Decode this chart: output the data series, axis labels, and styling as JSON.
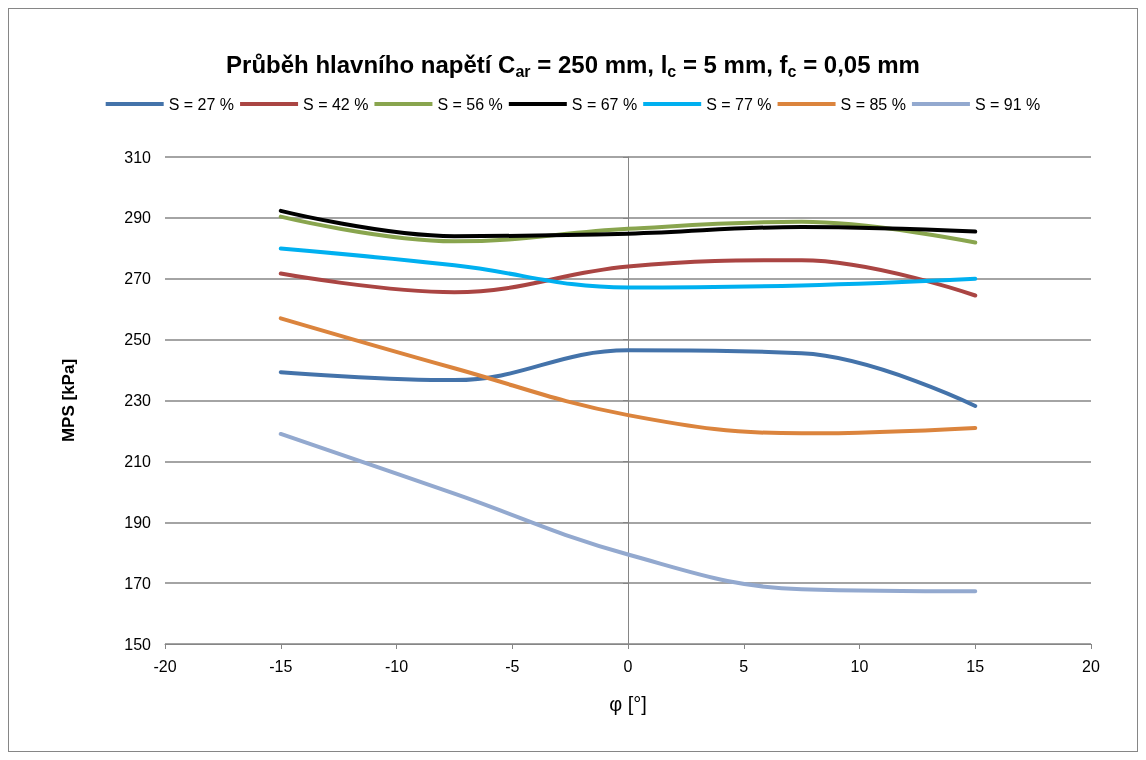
{
  "chart_data": {
    "type": "line",
    "title": "Průběh hlavního napětí C$_{ar}$ = 250 mm, l$_{c}$ = 5 mm, f$_{c}$ = 0,05 mm",
    "xlabel": "φ [°]",
    "ylabel": "MPS [kPa]",
    "x": [
      -15,
      -7.5,
      0,
      7.5,
      15
    ],
    "series": [
      {
        "name": "S = 27 %",
        "color": "#4473aa",
        "values": [
          239.3,
          236.7,
          246.5,
          245.5,
          228.2
        ]
      },
      {
        "name": "S = 42 %",
        "color": "#aa4543",
        "values": [
          271.7,
          265.6,
          274,
          276.1,
          264.5
        ]
      },
      {
        "name": "S = 56 %",
        "color": "#89a54e",
        "values": [
          290.4,
          282.3,
          286.4,
          288.7,
          281.9
        ]
      },
      {
        "name": "S = 67 %",
        "color": "#000000",
        "values": [
          292.3,
          284,
          284.8,
          287,
          285.5
        ]
      },
      {
        "name": "S = 77 %",
        "color": "#00b0f0",
        "values": [
          279.9,
          274.4,
          267.1,
          267.8,
          270
        ]
      },
      {
        "name": "S = 85 %",
        "color": "#db843d",
        "values": [
          257,
          240.6,
          225.2,
          219.2,
          221
        ]
      },
      {
        "name": "S = 91 %",
        "color": "#93a9cf",
        "values": [
          219,
          199.4,
          179.4,
          168,
          167.3
        ]
      }
    ],
    "xlim": [
      -20,
      20
    ],
    "xticks": [
      -20,
      -15,
      -10,
      -5,
      0,
      5,
      10,
      15,
      20
    ],
    "ylim": [
      150,
      310
    ],
    "yticks": [
      150,
      170,
      190,
      210,
      230,
      250,
      270,
      290,
      310
    ],
    "grid": "y",
    "legend": "top",
    "marker": "none",
    "line_style": "solid"
  }
}
